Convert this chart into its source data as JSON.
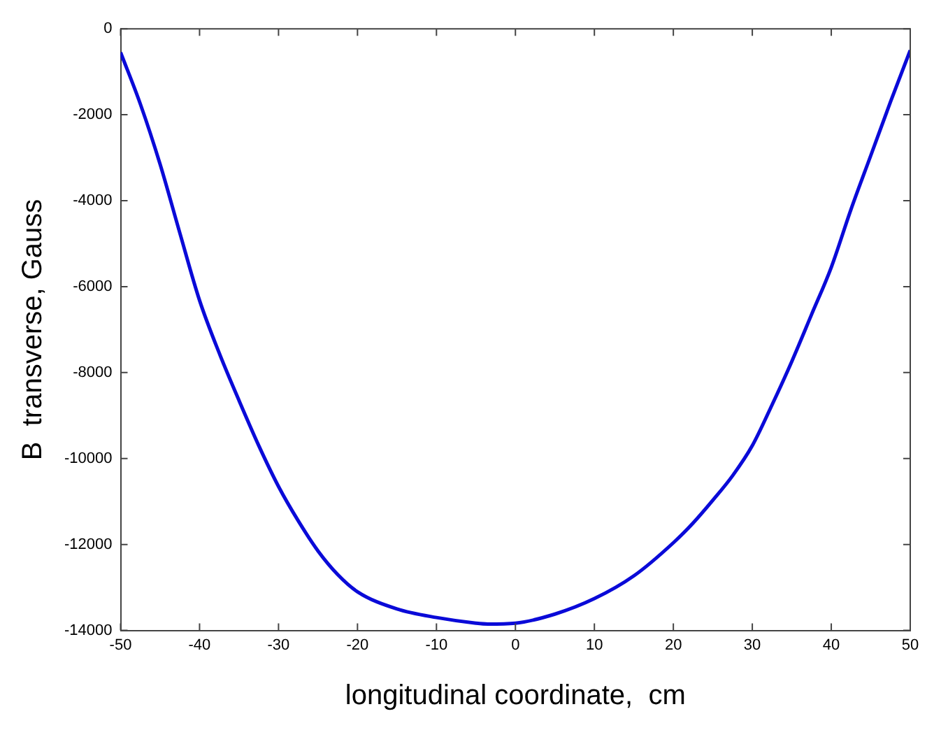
{
  "chart_data": {
    "type": "line",
    "xlabel": "longitudinal coordinate,  cm",
    "ylabel": "B  transverse, Gauss",
    "x": [
      -50,
      -47.5,
      -45,
      -42.5,
      -40,
      -37.5,
      -35,
      -32.5,
      -30,
      -27.5,
      -25,
      -22.5,
      -20,
      -15,
      -10,
      -5,
      -3.5,
      0,
      5,
      10,
      15,
      20,
      22.5,
      25,
      27.5,
      30,
      32.5,
      35,
      37.5,
      40,
      42.5,
      45,
      47.5,
      50
    ],
    "series": [
      {
        "color": "#0a0ad8",
        "values": [
          -550,
          -1750,
          -3150,
          -4750,
          -6320,
          -7550,
          -8650,
          -9700,
          -10650,
          -11450,
          -12150,
          -12700,
          -13100,
          -13500,
          -13700,
          -13830,
          -13850,
          -13830,
          -13620,
          -13260,
          -12730,
          -11960,
          -11500,
          -10970,
          -10400,
          -9700,
          -8750,
          -7740,
          -6650,
          -5550,
          -4200,
          -2950,
          -1700,
          -500
        ]
      }
    ],
    "xlim": [
      -50,
      50
    ],
    "xticks": [
      -50,
      -40,
      -30,
      -20,
      -10,
      0,
      10,
      20,
      30,
      40,
      50
    ],
    "ylim": [
      -14000,
      0
    ],
    "yticks": [
      -14000,
      -12000,
      -10000,
      -8000,
      -6000,
      -4000,
      -2000,
      0
    ],
    "grid": false,
    "legend": false,
    "marker": "none",
    "line_style": "solid"
  }
}
